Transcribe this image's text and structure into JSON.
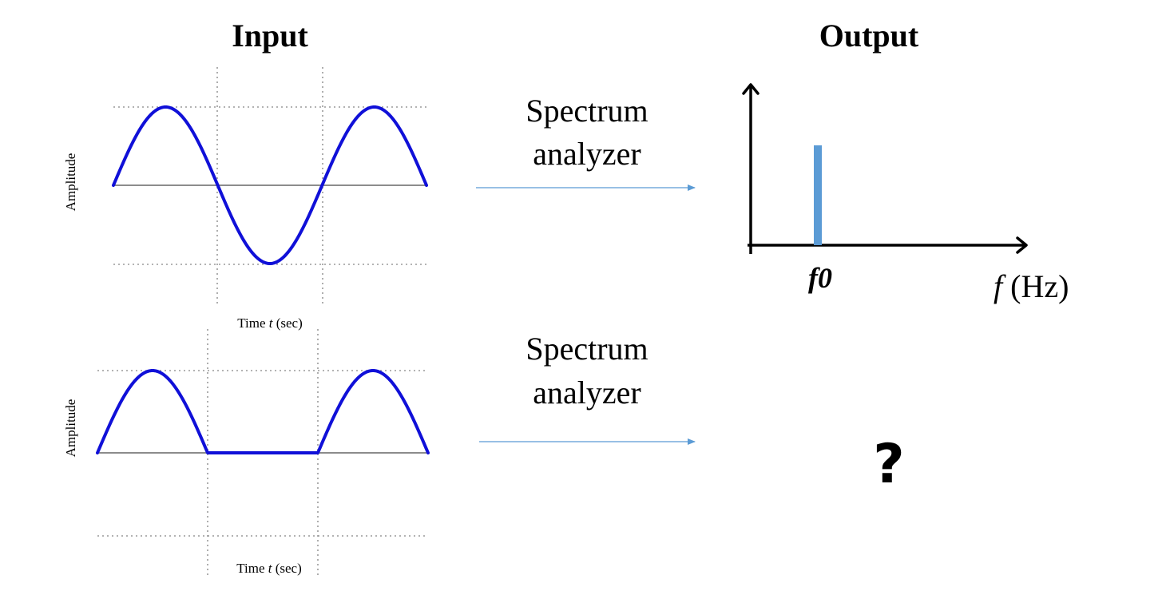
{
  "headings": {
    "input": "Input",
    "output": "Output"
  },
  "rows": [
    {
      "signal": "sine",
      "ylabel": "Amplitude",
      "xlabel_prefix": "Time ",
      "xlabel_var": "t",
      "xlabel_suffix": " (sec)",
      "process_line1": "Spectrum",
      "process_line2": "analyzer"
    },
    {
      "signal": "half-wave-rectified-sine",
      "ylabel": "Amplitude",
      "xlabel_prefix": "Time ",
      "xlabel_var": "t",
      "xlabel_suffix": " (sec)",
      "process_line1": "Spectrum",
      "process_line2": "analyzer"
    }
  ],
  "spectrum": {
    "spike_label": "f0",
    "axis_var": "f",
    "axis_unit": " (Hz)",
    "spike_color": "#5b9bd5"
  },
  "unknown_output": "?",
  "colors": {
    "wave": "#1010d8",
    "arrow": "#5b9bd5"
  }
}
